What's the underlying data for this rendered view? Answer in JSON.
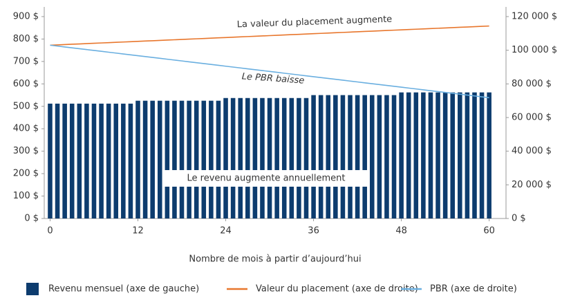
{
  "chart_data": {
    "type": "bar-line",
    "x": [
      0,
      1,
      2,
      3,
      4,
      5,
      6,
      7,
      8,
      9,
      10,
      11,
      12,
      13,
      14,
      15,
      16,
      17,
      18,
      19,
      20,
      21,
      22,
      23,
      24,
      25,
      26,
      27,
      28,
      29,
      30,
      31,
      32,
      33,
      34,
      35,
      36,
      37,
      38,
      39,
      40,
      41,
      42,
      43,
      44,
      45,
      46,
      47,
      48,
      49,
      50,
      51,
      52,
      53,
      54,
      55,
      56,
      57,
      58,
      59,
      60
    ],
    "xlim": [
      -0.8,
      62.3
    ],
    "xticks": [
      0,
      12,
      24,
      36,
      48,
      60
    ],
    "xlabel": "Nombre de mois à partir d’aujourd’hui",
    "ylim": [
      0,
      900
    ],
    "yticks": [
      {
        "value": 0,
        "label": "0 $"
      },
      {
        "value": 100,
        "label": "100 $"
      },
      {
        "value": 200,
        "label": "200 $"
      },
      {
        "value": 300,
        "label": "300 $"
      },
      {
        "value": 400,
        "label": "400 $"
      },
      {
        "value": 500,
        "label": "500 $"
      },
      {
        "value": 600,
        "label": "600 $"
      },
      {
        "value": 700,
        "label": "700 $"
      },
      {
        "value": 800,
        "label": "800 $"
      },
      {
        "value": 900,
        "label": "900 $"
      }
    ],
    "y2lim": [
      0,
      120000
    ],
    "y2ticks": [
      {
        "value": 0,
        "label": "0 $"
      },
      {
        "value": 20000,
        "label": "20 000 $"
      },
      {
        "value": 40000,
        "label": "40 000 $"
      },
      {
        "value": 60000,
        "label": "60 000 $"
      },
      {
        "value": 80000,
        "label": "80 000 $"
      },
      {
        "value": 100000,
        "label": "100 000 $"
      },
      {
        "value": 120000,
        "label": "120 000 $"
      }
    ],
    "series": [
      {
        "name": "Revenu mensuel (axe de gauche)",
        "type": "bar",
        "color": "#0d3c6e",
        "values": [
          512,
          512,
          512,
          512,
          512,
          512,
          512,
          512,
          512,
          512,
          512,
          512,
          525,
          525,
          525,
          525,
          525,
          525,
          525,
          525,
          525,
          525,
          525,
          525,
          537,
          537,
          537,
          537,
          537,
          537,
          537,
          537,
          537,
          537,
          537,
          537,
          550,
          550,
          550,
          550,
          550,
          550,
          550,
          550,
          550,
          550,
          550,
          550,
          562,
          562,
          562,
          562,
          562,
          562,
          562,
          562,
          562,
          562,
          562,
          562,
          562
        ]
      },
      {
        "name": "Valeur du placement (axe de droite)",
        "type": "line",
        "axis": "y2",
        "color": "#e8762c",
        "values": [
          103000,
          103190,
          103380,
          103570,
          103760,
          103950,
          104140,
          104330,
          104520,
          104710,
          104900,
          105090,
          105280,
          105470,
          105660,
          105850,
          106040,
          106230,
          106420,
          106610,
          106800,
          106990,
          107180,
          107370,
          107560,
          107750,
          107940,
          108130,
          108320,
          108510,
          108700,
          108890,
          109080,
          109270,
          109460,
          109650,
          109840,
          110030,
          110220,
          110410,
          110600,
          110790,
          110980,
          111170,
          111360,
          111550,
          111740,
          111930,
          112120,
          112310,
          112500,
          112690,
          112880,
          113070,
          113260,
          113450,
          113640,
          113830,
          114020,
          114210,
          114400
        ]
      },
      {
        "name": "PBR (axe de droite)",
        "type": "line",
        "axis": "y2",
        "color": "#6aafe0",
        "values": [
          103000,
          102480,
          101960,
          101440,
          100920,
          100400,
          99880,
          99360,
          98840,
          98320,
          97800,
          97280,
          96760,
          96240,
          95720,
          95200,
          94680,
          94160,
          93640,
          93120,
          92600,
          92080,
          91560,
          91040,
          90520,
          90000,
          89480,
          88960,
          88440,
          87920,
          87400,
          86880,
          86360,
          85840,
          85320,
          84800,
          84280,
          83760,
          83240,
          82720,
          82200,
          81680,
          81160,
          80640,
          80120,
          79600,
          79080,
          78560,
          78040,
          77520,
          77000,
          76480,
          75960,
          75440,
          74920,
          74400,
          73880,
          73360,
          72840,
          72320,
          71800
        ]
      }
    ],
    "annotations": [
      "La valeur du placement augmente",
      "Le PBR baisse",
      "Le revenu augmente annuellement"
    ],
    "legend": "bottom"
  }
}
